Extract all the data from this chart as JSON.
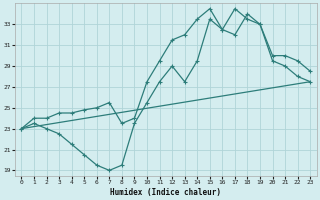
{
  "xlabel": "Humidex (Indice chaleur)",
  "bg_color": "#d4edef",
  "grid_color": "#b0d4d8",
  "line_color": "#2d7d7a",
  "line1_x": [
    0,
    1,
    2,
    3,
    4,
    5,
    6,
    7,
    8,
    9,
    10,
    11,
    12,
    13,
    14,
    15,
    16,
    17,
    18,
    19,
    20,
    21,
    22,
    23
  ],
  "line1_y": [
    23,
    23.5,
    23.0,
    22.5,
    21.5,
    20.5,
    19.5,
    19.0,
    19.5,
    23.5,
    25.5,
    27.5,
    29.0,
    27.5,
    29.5,
    33.5,
    32.5,
    32.0,
    34.0,
    33.0,
    29.5,
    29.0,
    28.0,
    27.5
  ],
  "line2_x": [
    0,
    1,
    2,
    3,
    4,
    5,
    6,
    7,
    8,
    9,
    10,
    11,
    12,
    13,
    14,
    15,
    16,
    17,
    18,
    19,
    20,
    21,
    22,
    23
  ],
  "line2_y": [
    23,
    24.0,
    24.0,
    24.5,
    24.5,
    24.8,
    25.0,
    25.5,
    23.5,
    24.0,
    27.5,
    29.5,
    31.5,
    32.0,
    33.5,
    34.5,
    32.5,
    34.5,
    33.5,
    33.0,
    30.0,
    30.0,
    29.5,
    28.5
  ],
  "line3_x": [
    0,
    23
  ],
  "line3_y": [
    23.0,
    27.5
  ],
  "ylim": [
    18.5,
    35.0
  ],
  "xlim": [
    -0.5,
    23.5
  ],
  "yticks": [
    19,
    21,
    23,
    25,
    27,
    29,
    31,
    33
  ],
  "xticks": [
    0,
    1,
    2,
    3,
    4,
    5,
    6,
    7,
    8,
    9,
    10,
    11,
    12,
    13,
    14,
    15,
    16,
    17,
    18,
    19,
    20,
    21,
    22,
    23
  ],
  "xlabel_fontsize": 5.5,
  "tick_fontsize": 4.5,
  "linewidth": 0.9,
  "markersize": 3.5
}
